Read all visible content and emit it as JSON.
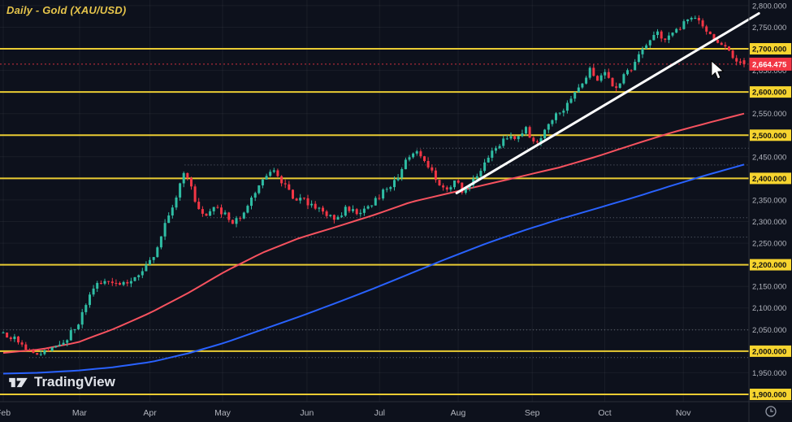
{
  "header": {
    "title": "Daily - Gold (XAU/USD)"
  },
  "watermark": {
    "text": "TradingView"
  },
  "colors": {
    "background": "#0d111c",
    "grid": "rgba(255,255,255,0.05)",
    "dotted": "rgba(170,175,190,0.55)",
    "up": "#2fbda4",
    "down": "#f23645",
    "level_line": "#e9cb33",
    "level_label_bg": "#f6d42f",
    "level_label_text": "#111111",
    "axis_text": "#b2b5be",
    "axis_border": "#2a2e39",
    "trendline": "#ffffff"
  },
  "price_scale": {
    "ticks": [
      {
        "label": "2,800.000",
        "value": 2800,
        "level": false
      },
      {
        "label": "2,750.000",
        "value": 2750,
        "level": false
      },
      {
        "label": "2,700.000",
        "value": 2700,
        "level": true
      },
      {
        "label": "2,650.000",
        "value": 2650,
        "level": false
      },
      {
        "label": "2,600.000",
        "value": 2600,
        "level": true
      },
      {
        "label": "2,550.000",
        "value": 2550,
        "level": false
      },
      {
        "label": "2,500.000",
        "value": 2500,
        "level": true
      },
      {
        "label": "2,450.000",
        "value": 2450,
        "level": false
      },
      {
        "label": "2,400.000",
        "value": 2400,
        "level": true
      },
      {
        "label": "2,350.000",
        "value": 2350,
        "level": false
      },
      {
        "label": "2,300.000",
        "value": 2300,
        "level": false
      },
      {
        "label": "2,250.000",
        "value": 2250,
        "level": false
      },
      {
        "label": "2,200.000",
        "value": 2200,
        "level": true
      },
      {
        "label": "2,150.000",
        "value": 2150,
        "level": false
      },
      {
        "label": "2,100.000",
        "value": 2100,
        "level": false
      },
      {
        "label": "2,050.000",
        "value": 2050,
        "level": false
      },
      {
        "label": "2,000.000",
        "value": 2000,
        "level": true
      },
      {
        "label": "1,950.000",
        "value": 1950,
        "level": false
      },
      {
        "label": "1,900.000",
        "value": 1900,
        "level": true
      }
    ],
    "last": {
      "label": "2,664.475",
      "value": 2664.475
    }
  },
  "time_scale": {
    "months": [
      {
        "label": "Feb",
        "t": 0.0
      },
      {
        "label": "Mar",
        "t": 0.103
      },
      {
        "label": "Apr",
        "t": 0.198
      },
      {
        "label": "May",
        "t": 0.296
      },
      {
        "label": "Jun",
        "t": 0.41
      },
      {
        "label": "Jul",
        "t": 0.508
      },
      {
        "label": "Aug",
        "t": 0.614
      },
      {
        "label": "Sep",
        "t": 0.714
      },
      {
        "label": "Oct",
        "t": 0.812
      },
      {
        "label": "Nov",
        "t": 0.918
      }
    ]
  },
  "chart_data": {
    "type": "candlestick",
    "instrument": "Gold (XAU/USD)",
    "timeframe": "Daily",
    "ylim": [
      1883,
      2813
    ],
    "x_axis_months": [
      "Feb",
      "Mar",
      "Apr",
      "May",
      "Jun",
      "Jul",
      "Aug",
      "Sep",
      "Oct",
      "Nov"
    ],
    "last_price": 2664.475,
    "candle_count": 198,
    "seed": 13,
    "levels": [
      {
        "value": 2700,
        "label": "2,700.000"
      },
      {
        "value": 2600,
        "label": "2,600.000"
      },
      {
        "value": 2500,
        "label": "2,500.000"
      },
      {
        "value": 2400,
        "label": "2,400.000"
      },
      {
        "value": 2200,
        "label": "2,200.000"
      },
      {
        "value": 2000,
        "label": "2,000.000"
      },
      {
        "value": 1900,
        "label": "1,900.000"
      }
    ],
    "dotted_levels": [
      {
        "value": 2470,
        "from": 0.558
      },
      {
        "value": 2431,
        "from": 0.245
      },
      {
        "value": 2309,
        "from": 0.275
      },
      {
        "value": 2264,
        "from": 0.31
      },
      {
        "value": 2049,
        "from": 0.0
      },
      {
        "value": 1985,
        "from": 0.035
      }
    ],
    "trendline": {
      "t1": 0.612,
      "p1": 2366,
      "t2": 1.02,
      "p2": 2782,
      "color": "#ffffff"
    },
    "price_path": [
      [
        0.0,
        2042
      ],
      [
        0.012,
        2032
      ],
      [
        0.025,
        2018
      ],
      [
        0.04,
        1992
      ],
      [
        0.055,
        1998
      ],
      [
        0.07,
        2012
      ],
      [
        0.085,
        2028
      ],
      [
        0.1,
        2060
      ],
      [
        0.112,
        2110
      ],
      [
        0.125,
        2152
      ],
      [
        0.14,
        2168
      ],
      [
        0.155,
        2158
      ],
      [
        0.17,
        2162
      ],
      [
        0.185,
        2178
      ],
      [
        0.2,
        2210
      ],
      [
        0.212,
        2262
      ],
      [
        0.225,
        2320
      ],
      [
        0.235,
        2368
      ],
      [
        0.245,
        2415
      ],
      [
        0.252,
        2388
      ],
      [
        0.262,
        2330
      ],
      [
        0.272,
        2308
      ],
      [
        0.285,
        2332
      ],
      [
        0.298,
        2318
      ],
      [
        0.31,
        2292
      ],
      [
        0.325,
        2322
      ],
      [
        0.34,
        2362
      ],
      [
        0.355,
        2412
      ],
      [
        0.365,
        2425
      ],
      [
        0.378,
        2388
      ],
      [
        0.392,
        2352
      ],
      [
        0.405,
        2348
      ],
      [
        0.42,
        2338
      ],
      [
        0.432,
        2322
      ],
      [
        0.448,
        2302
      ],
      [
        0.462,
        2328
      ],
      [
        0.478,
        2322
      ],
      [
        0.495,
        2338
      ],
      [
        0.512,
        2368
      ],
      [
        0.528,
        2392
      ],
      [
        0.545,
        2442
      ],
      [
        0.558,
        2468
      ],
      [
        0.572,
        2432
      ],
      [
        0.585,
        2398
      ],
      [
        0.598,
        2372
      ],
      [
        0.61,
        2392
      ],
      [
        0.622,
        2368
      ],
      [
        0.635,
        2398
      ],
      [
        0.65,
        2438
      ],
      [
        0.665,
        2468
      ],
      [
        0.678,
        2498
      ],
      [
        0.692,
        2492
      ],
      [
        0.705,
        2515
      ],
      [
        0.718,
        2482
      ],
      [
        0.732,
        2512
      ],
      [
        0.748,
        2548
      ],
      [
        0.762,
        2572
      ],
      [
        0.778,
        2612
      ],
      [
        0.792,
        2652
      ],
      [
        0.802,
        2632
      ],
      [
        0.812,
        2648
      ],
      [
        0.825,
        2608
      ],
      [
        0.838,
        2638
      ],
      [
        0.852,
        2662
      ],
      [
        0.868,
        2712
      ],
      [
        0.882,
        2738
      ],
      [
        0.895,
        2718
      ],
      [
        0.908,
        2742
      ],
      [
        0.922,
        2762
      ],
      [
        0.932,
        2782
      ],
      [
        0.945,
        2748
      ],
      [
        0.958,
        2722
      ],
      [
        0.972,
        2705
      ],
      [
        0.985,
        2682
      ],
      [
        1.0,
        2664.475
      ]
    ],
    "moving_averages": [
      {
        "name": "moving-average-fast",
        "color": "#f7525f",
        "points": [
          [
            0,
            1996
          ],
          [
            0.05,
            2004
          ],
          [
            0.1,
            2020
          ],
          [
            0.15,
            2052
          ],
          [
            0.2,
            2090
          ],
          [
            0.25,
            2135
          ],
          [
            0.3,
            2185
          ],
          [
            0.35,
            2228
          ],
          [
            0.4,
            2262
          ],
          [
            0.45,
            2288
          ],
          [
            0.5,
            2315
          ],
          [
            0.55,
            2345
          ],
          [
            0.6,
            2365
          ],
          [
            0.65,
            2385
          ],
          [
            0.7,
            2405
          ],
          [
            0.75,
            2425
          ],
          [
            0.8,
            2450
          ],
          [
            0.85,
            2478
          ],
          [
            0.9,
            2505
          ],
          [
            0.95,
            2528
          ],
          [
            1,
            2550
          ]
        ]
      },
      {
        "name": "moving-average-slow",
        "color": "#2962ff",
        "points": [
          [
            0,
            1948
          ],
          [
            0.05,
            1950
          ],
          [
            0.1,
            1955
          ],
          [
            0.15,
            1963
          ],
          [
            0.2,
            1975
          ],
          [
            0.25,
            1995
          ],
          [
            0.3,
            2020
          ],
          [
            0.35,
            2050
          ],
          [
            0.4,
            2080
          ],
          [
            0.45,
            2112
          ],
          [
            0.5,
            2145
          ],
          [
            0.55,
            2180
          ],
          [
            0.6,
            2215
          ],
          [
            0.65,
            2248
          ],
          [
            0.7,
            2278
          ],
          [
            0.75,
            2305
          ],
          [
            0.8,
            2330
          ],
          [
            0.85,
            2355
          ],
          [
            0.9,
            2382
          ],
          [
            0.95,
            2408
          ],
          [
            1,
            2432
          ]
        ]
      }
    ],
    "cursor": {
      "t": 0.956,
      "price": 2672
    }
  }
}
